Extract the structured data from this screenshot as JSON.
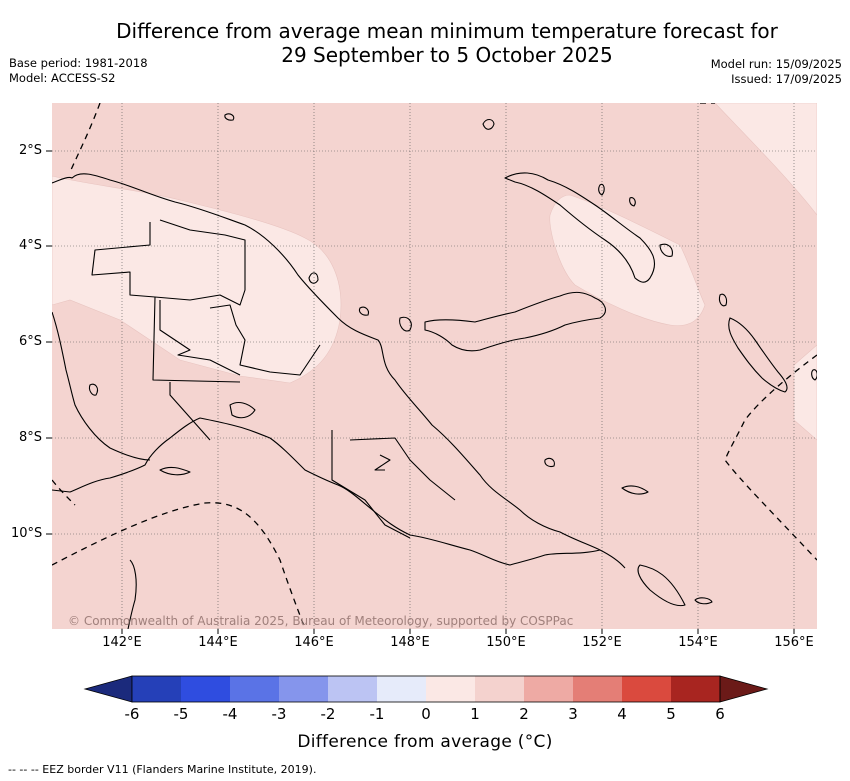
{
  "title": {
    "line1": "Difference from average mean minimum temperature forecast for",
    "line2": "29 September to 5 October 2025"
  },
  "meta": {
    "base_period": "Base period: 1981-2018",
    "model": "Model: ACCESS-S2",
    "model_run": "Model run: 15/09/2025",
    "issued": "Issued: 17/09/2025"
  },
  "map": {
    "latitude_labels": [
      "2°S",
      "4°S",
      "6°S",
      "8°S",
      "10°S"
    ],
    "longitude_labels": [
      "142°E",
      "144°E",
      "146°E",
      "148°E",
      "150°E",
      "152°E",
      "154°E",
      "156°E"
    ],
    "credit": "© Commonwealth of Australia 2025, Bureau of Meteorology, supported by COSPPac",
    "colors": {
      "background_anomaly_0_to_1": "#f4d4d0",
      "anomaly_minus1_to_0": "#fbe8e5",
      "eez_line": "#000000"
    }
  },
  "colorbar": {
    "title": "Difference from average (°C)",
    "ticks": [
      "-6",
      "-5",
      "-4",
      "-3",
      "-2",
      "-1",
      "0",
      "1",
      "2",
      "3",
      "4",
      "5",
      "6"
    ],
    "colors": [
      "#1b2a7c",
      "#2540b8",
      "#2f4de0",
      "#5a73e6",
      "#8595ec",
      "#bcc4f3",
      "#e6ebfa",
      "#fbe8e5",
      "#f4d2ce",
      "#eeaaa4",
      "#e47e76",
      "#da4a3e",
      "#a82520",
      "#6b1a18"
    ]
  },
  "footer": {
    "eez_legend": "--  --  -- EEZ border V11 (Flanders Marine Institute, 2019)."
  }
}
